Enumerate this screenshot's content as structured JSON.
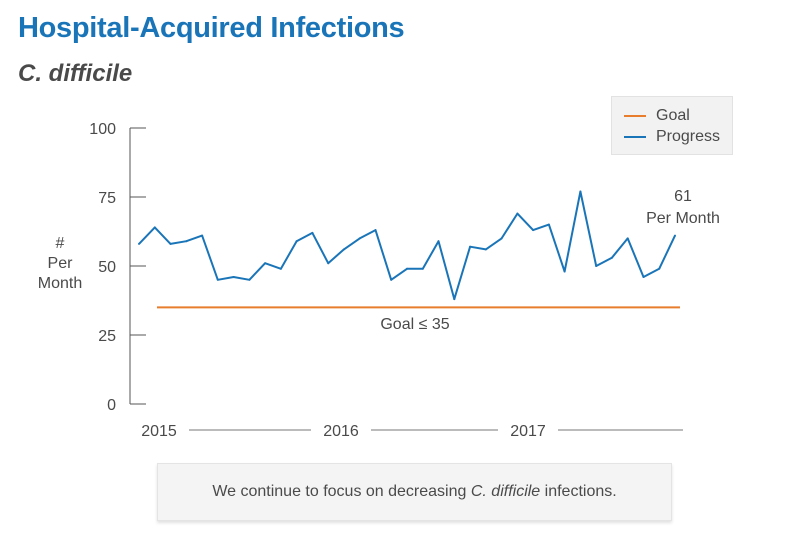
{
  "header": {
    "title": "Hospital-Acquired Infections",
    "subtitle": "C. difficile"
  },
  "note": {
    "before": "We continue to focus on decreasing ",
    "emphasis": "C. difficile",
    "after": " infections."
  },
  "colors": {
    "title": "#1a75b8",
    "progress": "#1a75b8",
    "goal": "#e87d2e",
    "axis": "#555555"
  },
  "chart_data": {
    "type": "line",
    "title": "Hospital-Acquired Infections",
    "subtitle": "C. difficile",
    "ylabel_lines": [
      "#",
      "Per",
      "Month"
    ],
    "xlabel": "",
    "ylim": [
      0,
      100
    ],
    "yticks": [
      0,
      25,
      50,
      75,
      100
    ],
    "x_year_labels": [
      "2015",
      "2016",
      "2017"
    ],
    "grid": false,
    "legend": {
      "placement": "top-right",
      "entries": [
        "Goal",
        "Progress"
      ]
    },
    "series": [
      {
        "name": "Progress",
        "values": [
          58,
          64,
          58,
          59,
          61,
          45,
          46,
          45,
          51,
          49,
          59,
          62,
          51,
          56,
          60,
          63,
          45,
          49,
          49,
          59,
          38,
          57,
          56,
          60,
          69,
          63,
          65,
          48,
          77,
          50,
          53,
          60,
          46,
          49,
          61
        ]
      },
      {
        "name": "Goal",
        "value": 35
      }
    ],
    "annotations": {
      "last_value": "61",
      "last_value_unit": "Per Month",
      "goal_label": "Goal ≤ 35"
    }
  }
}
